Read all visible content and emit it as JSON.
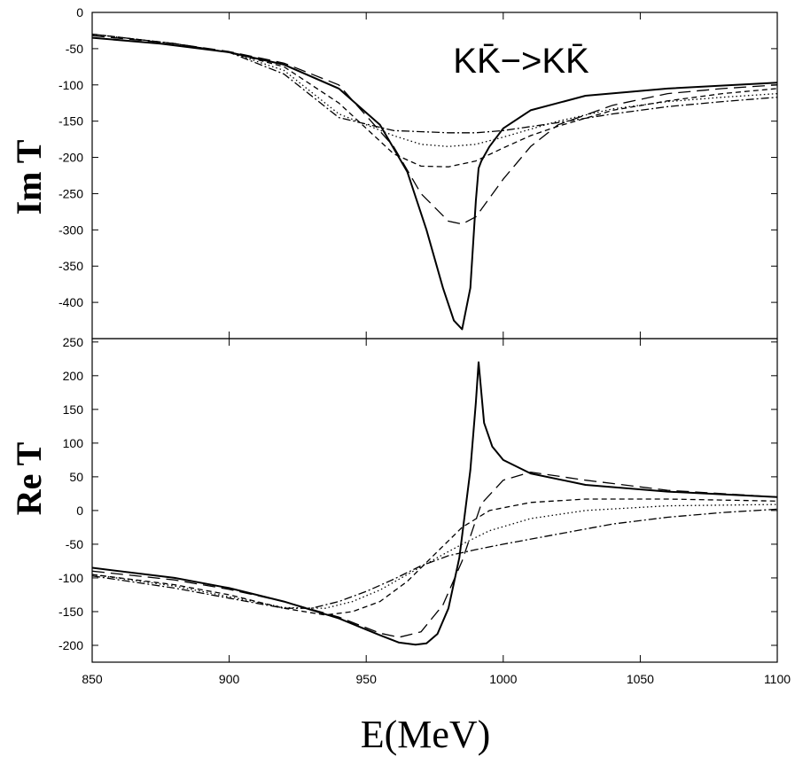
{
  "chart_data": [
    {
      "type": "line",
      "panel": "top",
      "ylabel": "Im T",
      "xlim": [
        850,
        1100
      ],
      "ylim": [
        -450,
        0
      ],
      "x_ticks": [
        850,
        900,
        950,
        1000,
        1050,
        1100
      ],
      "y_ticks": [
        0,
        -50,
        -100,
        -150,
        -200,
        -250,
        -300,
        -350,
        -400
      ],
      "annotation": "KK̄−>KK̄",
      "series": [
        {
          "style": "solid",
          "x": [
            850,
            875,
            900,
            920,
            940,
            955,
            965,
            972,
            978,
            982,
            985,
            988,
            990,
            991,
            992,
            995,
            1000,
            1010,
            1030,
            1060,
            1100
          ],
          "y": [
            -35,
            -43,
            -55,
            -72,
            -105,
            -155,
            -220,
            -300,
            -380,
            -425,
            -437,
            -380,
            -260,
            -215,
            -205,
            -185,
            -160,
            -135,
            -115,
            -105,
            -97
          ]
        },
        {
          "style": "long-dash",
          "x": [
            850,
            880,
            900,
            920,
            940,
            960,
            970,
            980,
            985,
            990,
            1000,
            1010,
            1020,
            1040,
            1060,
            1080,
            1100
          ],
          "y": [
            -32,
            -43,
            -54,
            -70,
            -100,
            -185,
            -250,
            -288,
            -292,
            -282,
            -230,
            -185,
            -155,
            -128,
            -112,
            -105,
            -100
          ]
        },
        {
          "style": "short-dash",
          "x": [
            850,
            880,
            900,
            920,
            940,
            950,
            960,
            970,
            980,
            990,
            1000,
            1010,
            1020,
            1040,
            1060,
            1080,
            1100
          ],
          "y": [
            -30,
            -43,
            -55,
            -75,
            -125,
            -160,
            -195,
            -212,
            -213,
            -205,
            -187,
            -170,
            -157,
            -135,
            -122,
            -112,
            -105
          ]
        },
        {
          "style": "dotted",
          "x": [
            850,
            880,
            900,
            920,
            940,
            960,
            970,
            980,
            990,
            1000,
            1020,
            1040,
            1060,
            1080,
            1100
          ],
          "y": [
            -30,
            -43,
            -55,
            -80,
            -140,
            -170,
            -182,
            -185,
            -182,
            -172,
            -150,
            -133,
            -123,
            -117,
            -112
          ]
        },
        {
          "style": "dash-dot",
          "x": [
            850,
            880,
            900,
            920,
            940,
            960,
            980,
            990,
            1000,
            1020,
            1040,
            1060,
            1080,
            1100
          ],
          "y": [
            -30,
            -43,
            -55,
            -85,
            -145,
            -163,
            -166,
            -166,
            -163,
            -152,
            -140,
            -130,
            -123,
            -117
          ]
        }
      ]
    },
    {
      "type": "line",
      "panel": "bottom",
      "ylabel": "Re T",
      "xlabel": "E(MeV)",
      "xlim": [
        850,
        1100
      ],
      "ylim": [
        -225,
        255
      ],
      "x_ticks": [
        850,
        900,
        950,
        1000,
        1050,
        1100
      ],
      "y_ticks": [
        250,
        200,
        150,
        100,
        50,
        0,
        -50,
        -100,
        -150,
        -200
      ],
      "series": [
        {
          "style": "solid",
          "x": [
            850,
            880,
            900,
            920,
            940,
            955,
            962,
            968,
            972,
            976,
            980,
            984,
            988,
            990,
            991,
            993,
            996,
            1000,
            1010,
            1030,
            1060,
            1100
          ],
          "y": [
            -85,
            -100,
            -115,
            -135,
            -160,
            -185,
            -196,
            -199,
            -197,
            -183,
            -145,
            -70,
            60,
            160,
            220,
            130,
            95,
            75,
            55,
            38,
            28,
            20
          ]
        },
        {
          "style": "long-dash",
          "x": [
            850,
            880,
            900,
            920,
            940,
            955,
            962,
            970,
            978,
            985,
            992,
            1000,
            1010,
            1030,
            1060,
            1100
          ],
          "y": [
            -90,
            -103,
            -117,
            -135,
            -158,
            -182,
            -188,
            -180,
            -140,
            -75,
            10,
            45,
            57,
            45,
            30,
            20
          ]
        },
        {
          "style": "short-dash",
          "x": [
            850,
            880,
            900,
            920,
            935,
            945,
            955,
            965,
            975,
            985,
            995,
            1010,
            1030,
            1060,
            1100
          ],
          "y": [
            -95,
            -110,
            -125,
            -145,
            -155,
            -150,
            -135,
            -105,
            -65,
            -25,
            0,
            12,
            17,
            17,
            14
          ]
        },
        {
          "style": "dotted",
          "x": [
            850,
            880,
            900,
            920,
            935,
            945,
            955,
            965,
            975,
            985,
            995,
            1010,
            1030,
            1060,
            1100
          ],
          "y": [
            -95,
            -112,
            -128,
            -144,
            -145,
            -135,
            -118,
            -95,
            -72,
            -50,
            -30,
            -12,
            0,
            7,
            9
          ]
        },
        {
          "style": "dash-dot",
          "x": [
            850,
            880,
            900,
            920,
            930,
            940,
            950,
            960,
            970,
            980,
            990,
            1000,
            1020,
            1040,
            1060,
            1080,
            1100
          ],
          "y": [
            -97,
            -115,
            -130,
            -145,
            -145,
            -135,
            -120,
            -102,
            -82,
            -67,
            -58,
            -50,
            -35,
            -20,
            -10,
            -3,
            2
          ]
        }
      ]
    }
  ]
}
